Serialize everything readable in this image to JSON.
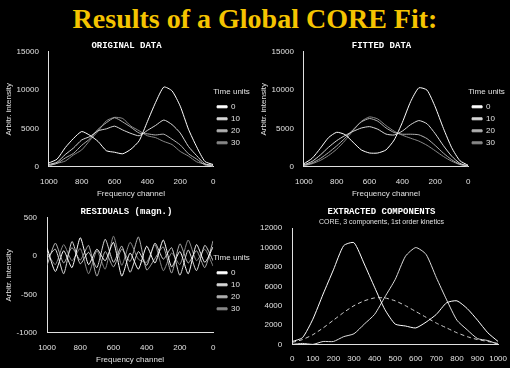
{
  "title": "Results of a Global CORE Fit:",
  "chart_data": [
    {
      "type": "line",
      "title": "ORIGINAL DATA",
      "x_label": "Frequency channel",
      "y_label": "Arbitr. intensity",
      "legend_title": "Time units",
      "legend": "right",
      "grid": false,
      "x": [
        0,
        50,
        100,
        150,
        200,
        250,
        300,
        350,
        400,
        450,
        500,
        550,
        600,
        650,
        700,
        750,
        800,
        850,
        900,
        950,
        1000
      ],
      "xlim": [
        1000,
        0
      ],
      "xticks": [
        1000,
        800,
        600,
        400,
        200,
        0
      ],
      "ylim": [
        0,
        15000
      ],
      "yticks": [
        0,
        5000,
        10000,
        15000
      ],
      "series": [
        {
          "name": "0",
          "color": "#ffffff",
          "values": [
            300,
            700,
            2600,
            4900,
            7900,
            9900,
            10400,
            8400,
            5900,
            3400,
            2300,
            1700,
            1900,
            2100,
            3300,
            4100,
            4600,
            3700,
            2500,
            1000,
            500
          ]
        },
        {
          "name": "10",
          "color": "#d8d8d8",
          "values": [
            220,
            380,
            1450,
            2650,
            4400,
            5500,
            6100,
            5400,
            4750,
            4050,
            4350,
            4800,
            5300,
            4950,
            4700,
            3950,
            3500,
            2450,
            1600,
            600,
            300
          ]
        },
        {
          "name": "20",
          "color": "#b0b0b0",
          "values": [
            150,
            250,
            1000,
            1700,
            2850,
            3600,
            4250,
            4150,
            4300,
            4400,
            5150,
            5850,
            6400,
            5750,
            4900,
            3650,
            2800,
            1750,
            1150,
            450,
            200
          ]
        },
        {
          "name": "30",
          "color": "#888888",
          "values": [
            50,
            350,
            650,
            1400,
            2000,
            2900,
            3300,
            3800,
            4050,
            4700,
            5300,
            6300,
            6450,
            6000,
            4650,
            3450,
            2200,
            1550,
            750,
            450,
            100
          ]
        }
      ]
    },
    {
      "type": "line",
      "title": "FITTED DATA",
      "x_label": "Frequency channel",
      "y_label": "Arbitr. intensity",
      "legend_title": "Time units",
      "legend": "right",
      "grid": false,
      "x": [
        0,
        50,
        100,
        150,
        200,
        250,
        300,
        350,
        400,
        450,
        500,
        550,
        600,
        650,
        700,
        750,
        800,
        850,
        900,
        950,
        1000
      ],
      "xlim": [
        1000,
        0
      ],
      "xticks": [
        1000,
        800,
        600,
        400,
        200,
        0
      ],
      "ylim": [
        0,
        15000
      ],
      "yticks": [
        0,
        5000,
        10000,
        15000
      ],
      "series": [
        {
          "name": "0",
          "color": "#ffffff",
          "values": [
            200,
            800,
            2500,
            5000,
            7800,
            10000,
            10300,
            8500,
            5800,
            3500,
            2200,
            1800,
            1800,
            2200,
            3200,
            4200,
            4500,
            3800,
            2400,
            1100,
            400
          ]
        },
        {
          "name": "10",
          "color": "#d8d8d8",
          "values": [
            120,
            450,
            1390,
            2750,
            4310,
            5610,
            6030,
            5500,
            4660,
            4150,
            4270,
            4900,
            5240,
            5060,
            4620,
            4070,
            3410,
            2540,
            1530,
            700,
            250
          ]
        },
        {
          "name": "20",
          "color": "#b0b0b0",
          "values": [
            100,
            325,
            925,
            1775,
            2775,
            3675,
            4175,
            4250,
            4250,
            4475,
            5075,
            5950,
            6300,
            5850,
            4850,
            3725,
            2725,
            1850,
            1075,
            500,
            175
          ]
        },
        {
          "name": "30",
          "color": "#888888",
          "values": [
            100,
            286,
            730,
            1346,
            2086,
            2804,
            3356,
            3730,
            4120,
            4644,
            5374,
            6236,
            6508,
            5928,
            4720,
            3400,
            2296,
            1460,
            828,
            396,
            136
          ]
        }
      ]
    },
    {
      "type": "line",
      "title": "RESIDUALS (magn.)",
      "x_label": "Frequency channel",
      "y_label": "Arbitr. intensity",
      "legend_title": "Time units",
      "legend": "right",
      "grid": false,
      "x": [
        0,
        50,
        100,
        150,
        200,
        250,
        300,
        350,
        400,
        450,
        500,
        550,
        600,
        650,
        700,
        750,
        800,
        850,
        900,
        950,
        1000
      ],
      "xlim": [
        1000,
        0
      ],
      "xticks": [
        1000,
        800,
        600,
        400,
        200,
        0
      ],
      "ylim": [
        -1000,
        500
      ],
      "yticks": [
        -1000,
        -500,
        0,
        500
      ],
      "series": [
        {
          "name": "0",
          "color": "#ffffff",
          "values": [
            120,
            -80,
            150,
            -230,
            60,
            -140,
            210,
            -90,
            130,
            -170,
            40,
            -260,
            180,
            -60,
            90,
            -110,
            240,
            -150,
            70,
            -200,
            110
          ]
        },
        {
          "name": "10",
          "color": "#d8d8d8",
          "values": [
            -60,
            140,
            -190,
            80,
            -250,
            110,
            -40,
            170,
            -120,
            60,
            -210,
            130,
            -80,
            220,
            -150,
            50,
            -100,
            190,
            -230,
            90,
            -30
          ]
        },
        {
          "name": "20",
          "color": "#b0b0b0",
          "values": [
            200,
            -150,
            70,
            -90,
            160,
            -220,
            120,
            -30,
            -180,
            250,
            -70,
            90,
            -140,
            60,
            -260,
            140,
            -50,
            110,
            -90,
            170,
            -120
          ]
        },
        {
          "name": "30",
          "color": "#888888",
          "values": [
            -130,
            90,
            -60,
            210,
            -110,
            40,
            -190,
            150,
            -80,
            -40,
            180,
            -120,
            260,
            -170,
            70,
            -230,
            100,
            -60,
            150,
            -110,
            50
          ]
        }
      ]
    },
    {
      "type": "line",
      "title": "EXTRACTED COMPONENTS",
      "subtitle": "CORE, 3 components, 1st order kinetics",
      "grid": false,
      "x": [
        0,
        50,
        100,
        150,
        200,
        250,
        300,
        350,
        400,
        450,
        500,
        550,
        600,
        650,
        700,
        750,
        800,
        850,
        900,
        950,
        1000
      ],
      "xlim": [
        0,
        1000
      ],
      "xticks": [
        0,
        100,
        200,
        300,
        400,
        500,
        600,
        700,
        800,
        900,
        1000
      ],
      "ylim": [
        0,
        12000
      ],
      "yticks": [
        0,
        2000,
        4000,
        6000,
        8000,
        10000,
        12000
      ],
      "series": [
        {
          "color": "#ffffff",
          "line_style": "solid",
          "values": [
            300,
            700,
            2600,
            5200,
            7700,
            10200,
            10500,
            8300,
            5900,
            3600,
            2100,
            1900,
            1700,
            2300,
            3100,
            4300,
            4500,
            3700,
            2500,
            1200,
            300
          ]
        },
        {
          "color": "#dddddd",
          "line_style": "solid",
          "values": [
            0,
            100,
            0,
            300,
            300,
            800,
            1100,
            2100,
            3100,
            4900,
            6700,
            9100,
            10000,
            9300,
            6900,
            4600,
            2500,
            1500,
            600,
            400,
            0
          ]
        },
        {
          "color": "#cccccc",
          "line_style": "dashed",
          "values": [
            200,
            500,
            1000,
            1700,
            2500,
            3300,
            4000,
            4500,
            4800,
            4800,
            4500,
            4000,
            3400,
            2800,
            2200,
            1700,
            1200,
            800,
            500,
            300,
            100
          ]
        }
      ]
    }
  ]
}
